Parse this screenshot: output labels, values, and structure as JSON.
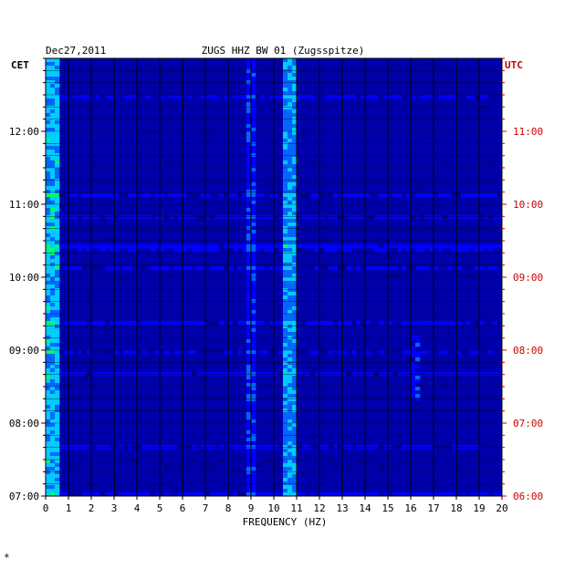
{
  "chart_data": {
    "type": "heatmap",
    "title": "ZUGS HHZ BW 01 (Zugsspitze)",
    "date": "Dec27,2011",
    "xlabel": "FREQUENCY (HZ)",
    "left_tz": "CET",
    "right_tz": "UTC",
    "xlim": [
      0,
      20
    ],
    "x_ticks": [
      "0",
      "1",
      "2",
      "3",
      "4",
      "5",
      "6",
      "7",
      "8",
      "9",
      "10",
      "11",
      "12",
      "13",
      "14",
      "15",
      "16",
      "17",
      "18",
      "19",
      "20"
    ],
    "left_ticks": [
      "07:00",
      "08:00",
      "09:00",
      "10:00",
      "11:00",
      "12:00"
    ],
    "right_ticks": [
      "06:00",
      "07:00",
      "08:00",
      "09:00",
      "10:00",
      "11:00"
    ],
    "time_range_cet": [
      "07:00",
      "13:00"
    ],
    "colormap": [
      "#00008b",
      "#0000ff",
      "#0066ff",
      "#00ccff",
      "#00ff66",
      "#ffff00",
      "#ff6600",
      "#ff0000"
    ],
    "notable_bands_hz": [
      {
        "center": 0.3,
        "description": "low-frequency energy, strongest"
      },
      {
        "center": 9.0,
        "description": "persistent line"
      },
      {
        "center": 10.7,
        "description": "strong persistent line"
      },
      {
        "center": 16.2,
        "description": "intermittent burst near 08:30"
      }
    ]
  },
  "colors": {
    "background": "#ffffff",
    "plot_base": "#0000aa",
    "grid": "#000000",
    "left_axis_text": "#000000",
    "right_axis_text": "#cc0000"
  },
  "footer_mark": "*"
}
